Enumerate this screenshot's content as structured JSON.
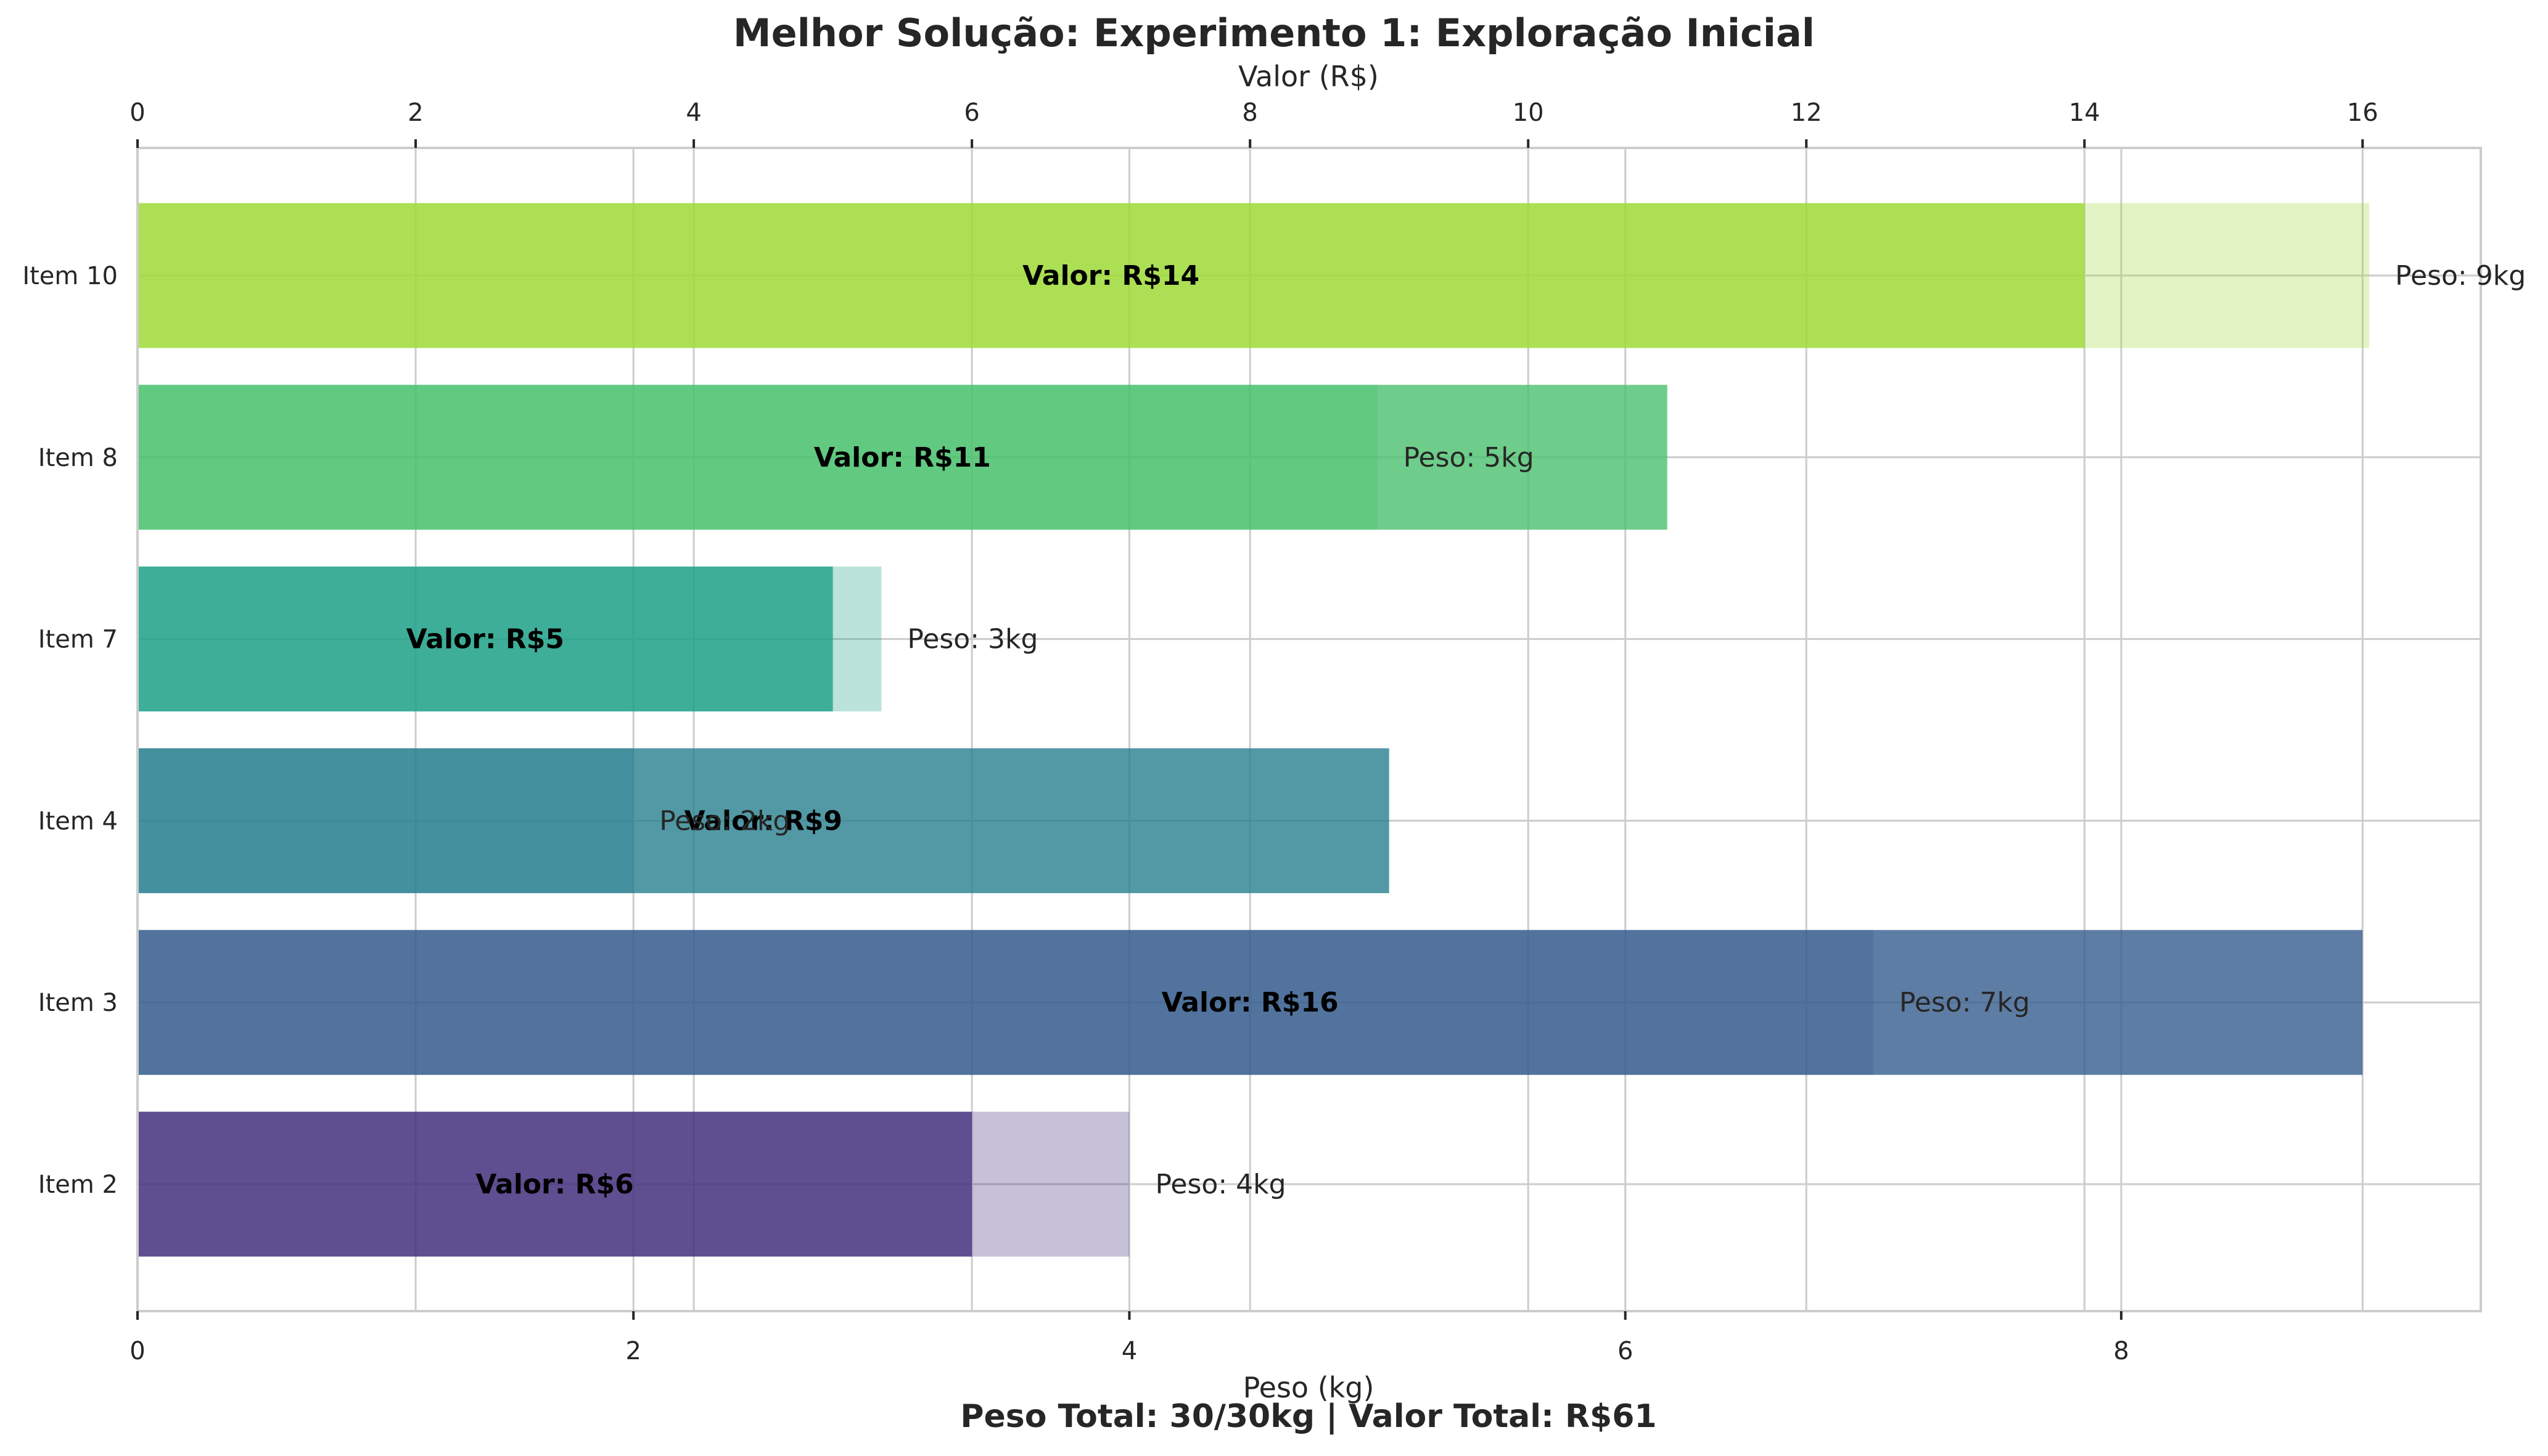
{
  "chart_data": {
    "type": "bar",
    "orientation": "horizontal",
    "title": "Melhor Solução: Experimento 1: Exploração Inicial",
    "top_axis_label": "Valor (R$)",
    "bottom_axis_label": "Peso (kg)",
    "footer": "Peso Total: 30/30kg | Valor Total: R$61",
    "categories": [
      "Item 10",
      "Item 8",
      "Item 7",
      "Item 4",
      "Item 3",
      "Item 2"
    ],
    "series": [
      {
        "name": "Valor (R$)",
        "axis": "top",
        "values": [
          14,
          11,
          5,
          9,
          16,
          6
        ],
        "labels": [
          "Valor: R$14",
          "Valor: R$11",
          "Valor: R$5",
          "Valor: R$9",
          "Valor: R$16",
          "Valor: R$6"
        ]
      },
      {
        "name": "Peso (kg)",
        "axis": "bottom",
        "values": [
          9,
          5,
          3,
          2,
          7,
          4
        ],
        "labels": [
          "Peso: 9kg",
          "Peso: 5kg",
          "Peso: 3kg",
          "Peso: 2kg",
          "Peso: 7kg",
          "Peso: 4kg"
        ]
      }
    ],
    "colors": [
      "#a0da39",
      "#4ac16d",
      "#1fa187",
      "#277f8e",
      "#365c8d",
      "#46327e"
    ],
    "top_xlim": [
      0,
      16.85
    ],
    "bottom_xlim": [
      0,
      9.45
    ],
    "top_ticks": [
      "0",
      "2",
      "4",
      "6",
      "8",
      "10",
      "12",
      "14",
      "16"
    ],
    "bottom_ticks": [
      "0",
      "2",
      "4",
      "6",
      "8"
    ],
    "grid": true,
    "legend": "none"
  }
}
